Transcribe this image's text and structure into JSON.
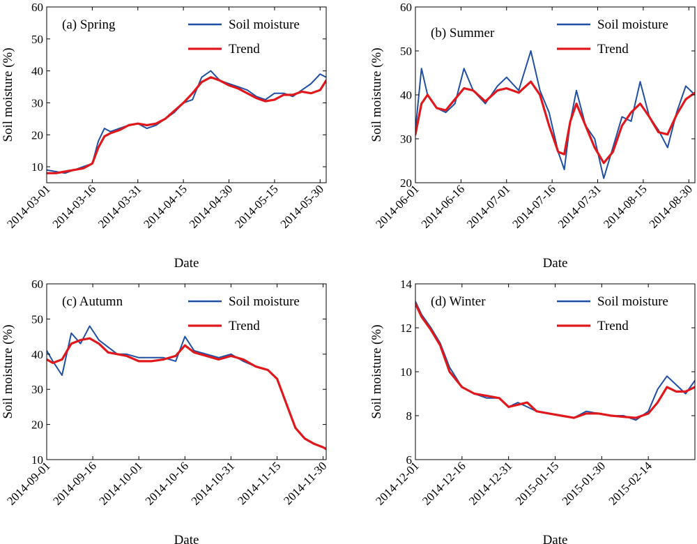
{
  "chart_data": [
    {
      "type": "line",
      "title": "(a) Spring",
      "xlabel": "Date",
      "ylabel": "Soil moisture (%)",
      "ylim": [
        5,
        60
      ],
      "yticks": [
        "10",
        "20",
        "30",
        "40",
        "50",
        "60"
      ],
      "xlim": [
        "2014-03-01",
        "2014-06-01"
      ],
      "xticks": [
        "2014-03-01",
        "2014-03-16",
        "2014-03-31",
        "2014-04-15",
        "2014-04-30",
        "2014-05-15",
        "2014-05-30"
      ],
      "legend_position": "top-right",
      "grid": false,
      "colors": {
        "Soil moisture": "#1f4fa3",
        "Trend": "#e0181c"
      },
      "series": [
        {
          "name": "Soil moisture",
          "x": [
            "2014-03-01",
            "2014-03-04",
            "2014-03-07",
            "2014-03-10",
            "2014-03-13",
            "2014-03-16",
            "2014-03-18",
            "2014-03-20",
            "2014-03-22",
            "2014-03-25",
            "2014-03-28",
            "2014-03-31",
            "2014-04-03",
            "2014-04-06",
            "2014-04-09",
            "2014-04-12",
            "2014-04-15",
            "2014-04-18",
            "2014-04-21",
            "2014-04-24",
            "2014-04-27",
            "2014-04-30",
            "2014-05-03",
            "2014-05-06",
            "2014-05-09",
            "2014-05-12",
            "2014-05-15",
            "2014-05-18",
            "2014-05-21",
            "2014-05-24",
            "2014-05-27",
            "2014-05-30",
            "2014-06-01"
          ],
          "values": [
            9,
            8.5,
            8,
            9,
            10,
            11,
            18,
            22,
            21,
            22,
            23,
            23.5,
            22,
            23,
            25,
            27,
            30,
            31,
            38,
            40,
            37,
            36,
            35,
            34,
            32,
            31,
            33,
            33,
            32,
            34,
            36,
            39,
            38
          ]
        },
        {
          "name": "Trend",
          "x": [
            "2014-03-01",
            "2014-03-04",
            "2014-03-07",
            "2014-03-10",
            "2014-03-13",
            "2014-03-16",
            "2014-03-18",
            "2014-03-20",
            "2014-03-22",
            "2014-03-25",
            "2014-03-28",
            "2014-03-31",
            "2014-04-03",
            "2014-04-06",
            "2014-04-09",
            "2014-04-12",
            "2014-04-15",
            "2014-04-18",
            "2014-04-21",
            "2014-04-24",
            "2014-04-27",
            "2014-04-30",
            "2014-05-03",
            "2014-05-06",
            "2014-05-09",
            "2014-05-12",
            "2014-05-15",
            "2014-05-18",
            "2014-05-21",
            "2014-05-24",
            "2014-05-27",
            "2014-05-30",
            "2014-06-01"
          ],
          "values": [
            8,
            8,
            8.5,
            9,
            9.5,
            11,
            16,
            19.5,
            20.5,
            21.5,
            23,
            23.5,
            23,
            23.5,
            25,
            27.5,
            30,
            33,
            36.5,
            38,
            37,
            35.5,
            34.5,
            33,
            31.5,
            30.5,
            31,
            32.5,
            32.5,
            33.5,
            33,
            34,
            37
          ]
        }
      ]
    },
    {
      "type": "line",
      "title": "(b) Summer",
      "xlabel": "Date",
      "ylabel": "Soil moisture (%)",
      "ylim": [
        20,
        60
      ],
      "yticks": [
        "20",
        "30",
        "40",
        "50",
        "60"
      ],
      "xlim": [
        "2014-06-01",
        "2014-09-01"
      ],
      "xticks": [
        "2014-06-01",
        "2014-06-16",
        "2014-07-01",
        "2014-07-16",
        "2014-07-31",
        "2014-08-15",
        "2014-08-30"
      ],
      "legend_position": "top-right",
      "grid": false,
      "colors": {
        "Soil moisture": "#1f4fa3",
        "Trend": "#e0181c"
      },
      "series": [
        {
          "name": "Soil moisture",
          "x": [
            "2014-06-01",
            "2014-06-03",
            "2014-06-05",
            "2014-06-08",
            "2014-06-11",
            "2014-06-14",
            "2014-06-17",
            "2014-06-20",
            "2014-06-24",
            "2014-06-28",
            "2014-07-01",
            "2014-07-05",
            "2014-07-09",
            "2014-07-12",
            "2014-07-15",
            "2014-07-18",
            "2014-07-20",
            "2014-07-22",
            "2014-07-24",
            "2014-07-27",
            "2014-07-30",
            "2014-08-02",
            "2014-08-05",
            "2014-08-08",
            "2014-08-11",
            "2014-08-14",
            "2014-08-17",
            "2014-08-20",
            "2014-08-23",
            "2014-08-26",
            "2014-08-29",
            "2014-09-01"
          ],
          "values": [
            32,
            46,
            40,
            37,
            36,
            38,
            46,
            41,
            38,
            42,
            44,
            41,
            50,
            41,
            36,
            27,
            23,
            34,
            41,
            33,
            30,
            21,
            28,
            35,
            34,
            43,
            35,
            32,
            28,
            36,
            42,
            40
          ]
        },
        {
          "name": "Trend",
          "x": [
            "2014-06-01",
            "2014-06-03",
            "2014-06-05",
            "2014-06-08",
            "2014-06-11",
            "2014-06-14",
            "2014-06-17",
            "2014-06-20",
            "2014-06-24",
            "2014-06-28",
            "2014-07-01",
            "2014-07-05",
            "2014-07-09",
            "2014-07-12",
            "2014-07-15",
            "2014-07-18",
            "2014-07-20",
            "2014-07-22",
            "2014-07-24",
            "2014-07-27",
            "2014-07-30",
            "2014-08-02",
            "2014-08-05",
            "2014-08-08",
            "2014-08-11",
            "2014-08-14",
            "2014-08-17",
            "2014-08-20",
            "2014-08-23",
            "2014-08-26",
            "2014-08-29",
            "2014-09-01"
          ],
          "values": [
            31,
            38,
            40,
            37,
            36.5,
            39,
            41.5,
            41,
            38.5,
            41,
            41.5,
            40.5,
            43,
            40,
            33,
            27,
            26.5,
            34,
            38,
            33,
            28,
            24.5,
            27,
            33,
            36,
            38,
            35,
            31.5,
            31,
            35.5,
            39,
            40.5
          ]
        }
      ]
    },
    {
      "type": "line",
      "title": "(c) Autumn",
      "xlabel": "Date",
      "ylabel": "Soil moisture (%)",
      "ylim": [
        10,
        60
      ],
      "yticks": [
        "10",
        "20",
        "30",
        "40",
        "50",
        "60"
      ],
      "xlim": [
        "2014-09-01",
        "2014-12-01"
      ],
      "xticks": [
        "2014-09-01",
        "2014-09-16",
        "2014-10-01",
        "2014-10-16",
        "2014-10-31",
        "2014-11-15",
        "2014-11-30"
      ],
      "legend_position": "top-right",
      "grid": false,
      "colors": {
        "Soil moisture": "#1f4fa3",
        "Trend": "#e0181c"
      },
      "series": [
        {
          "name": "Soil moisture",
          "x": [
            "2014-09-01",
            "2014-09-03",
            "2014-09-06",
            "2014-09-09",
            "2014-09-12",
            "2014-09-15",
            "2014-09-18",
            "2014-09-21",
            "2014-09-24",
            "2014-09-27",
            "2014-10-01",
            "2014-10-05",
            "2014-10-09",
            "2014-10-13",
            "2014-10-16",
            "2014-10-19",
            "2014-10-23",
            "2014-10-27",
            "2014-10-31",
            "2014-11-04",
            "2014-11-08",
            "2014-11-12",
            "2014-11-15",
            "2014-11-18",
            "2014-11-21",
            "2014-11-24",
            "2014-11-27",
            "2014-11-30",
            "2014-12-01"
          ],
          "values": [
            41,
            38,
            34,
            46,
            43,
            48,
            44,
            42,
            40,
            40,
            39,
            39,
            39,
            38,
            45,
            41,
            40,
            39,
            40,
            38,
            36.5,
            35.5,
            33,
            26,
            19,
            16,
            14.5,
            13.5,
            13
          ]
        },
        {
          "name": "Trend",
          "x": [
            "2014-09-01",
            "2014-09-03",
            "2014-09-06",
            "2014-09-09",
            "2014-09-12",
            "2014-09-15",
            "2014-09-18",
            "2014-09-21",
            "2014-09-24",
            "2014-09-27",
            "2014-10-01",
            "2014-10-05",
            "2014-10-09",
            "2014-10-13",
            "2014-10-16",
            "2014-10-19",
            "2014-10-23",
            "2014-10-27",
            "2014-10-31",
            "2014-11-04",
            "2014-11-08",
            "2014-11-12",
            "2014-11-15",
            "2014-11-18",
            "2014-11-21",
            "2014-11-24",
            "2014-11-27",
            "2014-11-30",
            "2014-12-01"
          ],
          "values": [
            38.5,
            37.5,
            38.5,
            43,
            44,
            44.5,
            43,
            40.5,
            40,
            39.5,
            38,
            38,
            38.5,
            39.5,
            42.5,
            40.5,
            39.5,
            38.5,
            39.5,
            38.5,
            36.5,
            35.5,
            33,
            26,
            19,
            16,
            14.5,
            13.5,
            13
          ]
        }
      ]
    },
    {
      "type": "line",
      "title": "(d) Winter",
      "xlabel": "Date",
      "ylabel": "Soil moisture (%)",
      "ylim": [
        6,
        14
      ],
      "yticks": [
        "6",
        "8",
        "10",
        "12",
        "14"
      ],
      "xlim": [
        "2014-12-01",
        "2015-03-01"
      ],
      "xticks": [
        "2014-12-01",
        "2014-12-16",
        "2014-12-31",
        "2015-01-15",
        "2015-01-30",
        "2015-02-14"
      ],
      "legend_position": "top-right",
      "grid": false,
      "colors": {
        "Soil moisture": "#1f4fa3",
        "Trend": "#e0181c"
      },
      "series": [
        {
          "name": "Soil moisture",
          "x": [
            "2014-12-01",
            "2014-12-03",
            "2014-12-06",
            "2014-12-09",
            "2014-12-12",
            "2014-12-16",
            "2014-12-20",
            "2014-12-24",
            "2014-12-28",
            "2014-12-31",
            "2015-01-03",
            "2015-01-06",
            "2015-01-09",
            "2015-01-13",
            "2015-01-17",
            "2015-01-21",
            "2015-01-25",
            "2015-01-29",
            "2015-02-02",
            "2015-02-06",
            "2015-02-10",
            "2015-02-14",
            "2015-02-17",
            "2015-02-20",
            "2015-02-23",
            "2015-02-26",
            "2015-03-01"
          ],
          "values": [
            13.2,
            12.6,
            12,
            11.3,
            10.2,
            9.3,
            9,
            8.8,
            8.8,
            8.4,
            8.6,
            8.4,
            8.2,
            8.1,
            8,
            7.9,
            8.2,
            8.1,
            8,
            8,
            7.8,
            8.2,
            9.2,
            9.8,
            9.4,
            9,
            9.6
          ]
        },
        {
          "name": "Trend",
          "x": [
            "2014-12-01",
            "2014-12-03",
            "2014-12-06",
            "2014-12-09",
            "2014-12-12",
            "2014-12-16",
            "2014-12-20",
            "2014-12-24",
            "2014-12-28",
            "2014-12-31",
            "2015-01-03",
            "2015-01-06",
            "2015-01-09",
            "2015-01-13",
            "2015-01-17",
            "2015-01-21",
            "2015-01-25",
            "2015-01-29",
            "2015-02-02",
            "2015-02-06",
            "2015-02-10",
            "2015-02-14",
            "2015-02-17",
            "2015-02-20",
            "2015-02-23",
            "2015-02-26",
            "2015-03-01"
          ],
          "values": [
            13.1,
            12.5,
            11.9,
            11.2,
            10,
            9.3,
            9,
            8.9,
            8.8,
            8.4,
            8.5,
            8.6,
            8.2,
            8.1,
            8,
            7.9,
            8.1,
            8.1,
            8,
            7.95,
            7.9,
            8.1,
            8.6,
            9.3,
            9.1,
            9.1,
            9.3
          ]
        }
      ]
    }
  ]
}
